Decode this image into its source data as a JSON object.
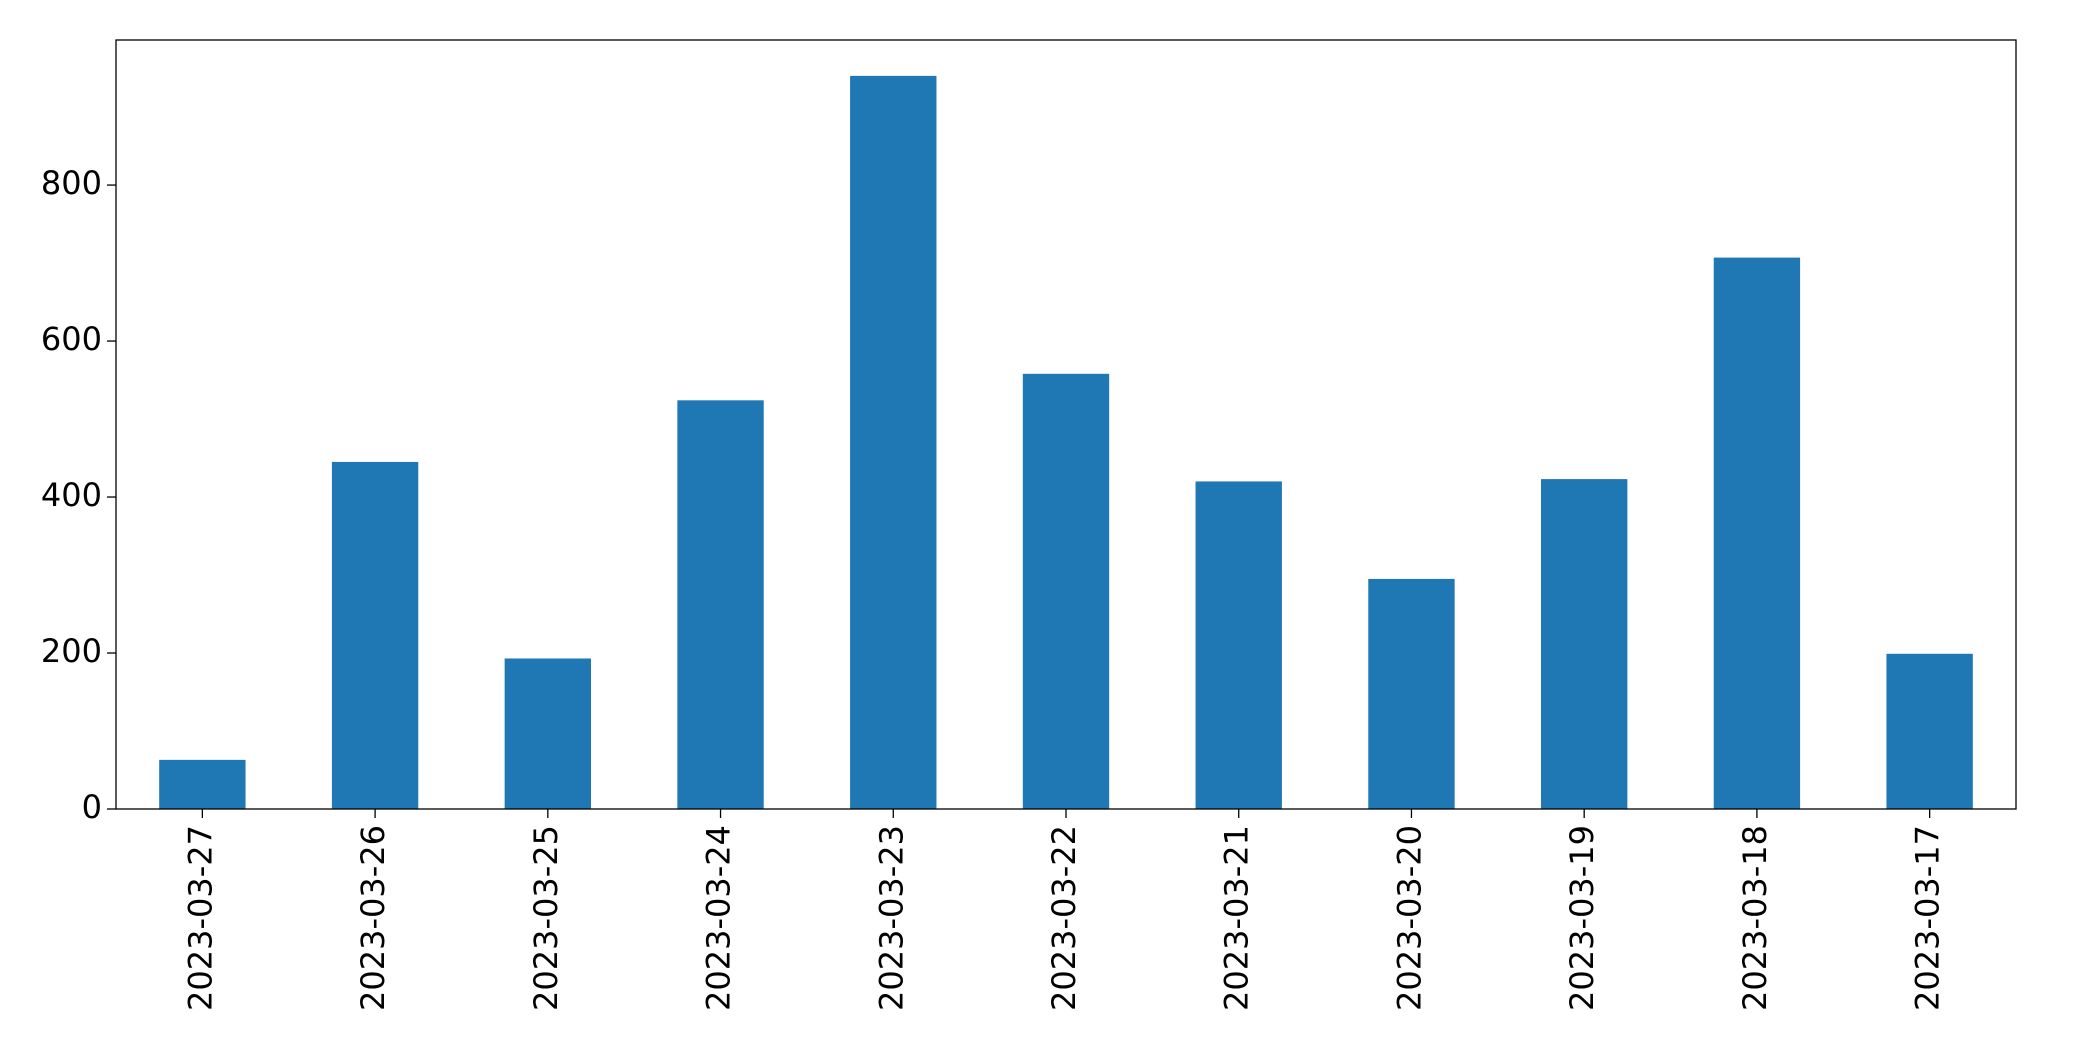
{
  "chart_data": {
    "type": "bar",
    "categories": [
      "2023-03-27",
      "2023-03-26",
      "2023-03-25",
      "2023-03-24",
      "2023-03-23",
      "2023-03-22",
      "2023-03-21",
      "2023-03-20",
      "2023-03-19",
      "2023-03-18",
      "2023-03-17"
    ],
    "values": [
      63,
      445,
      193,
      524,
      940,
      558,
      420,
      295,
      423,
      707,
      199
    ],
    "color": "#1f77b4",
    "ylim": [
      0,
      986
    ],
    "yticks": [
      0,
      200,
      400,
      600,
      800
    ],
    "grid": false
  }
}
